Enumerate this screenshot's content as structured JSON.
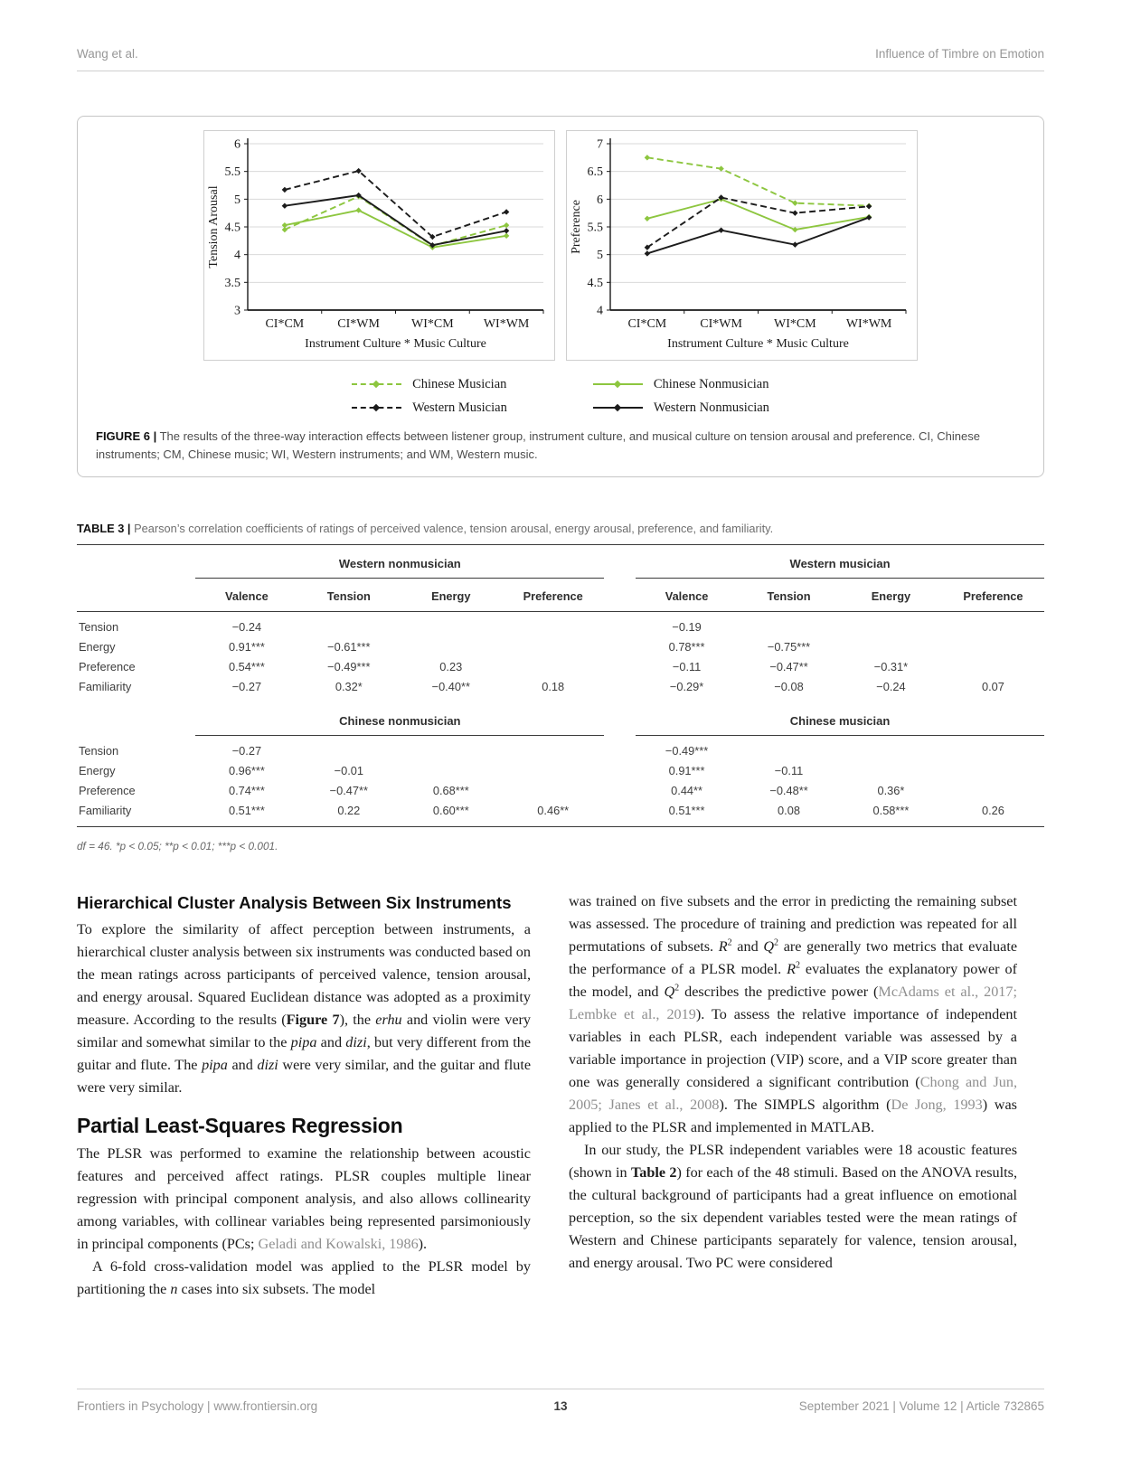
{
  "header": {
    "left": "Wang et al.",
    "right": "Influence of Timbre on Emotion"
  },
  "footer": {
    "left": "Frontiers in Psychology | www.frontiersin.org",
    "page_number": "13",
    "right": "September 2021 | Volume 12 | Article 732865"
  },
  "colors": {
    "green_series": "#8dc63f",
    "black_series": "#1c1c1c",
    "gridline": "#d9d9d9"
  },
  "figure6": {
    "label": "FIGURE 6 |",
    "caption": "The results of the three-way interaction effects between listener group, instrument culture, and musical culture on tension arousal and preference. CI, Chinese instruments; CM, Chinese music; WI, Western instruments; and WM, Western music.",
    "legend": [
      {
        "label": "Chinese Musician",
        "color": "#8dc63f",
        "dashed": true
      },
      {
        "label": "Chinese Nonmusician",
        "color": "#8dc63f",
        "dashed": false
      },
      {
        "label": "Western Musician",
        "color": "#1c1c1c",
        "dashed": true
      },
      {
        "label": "Western Nonmusician",
        "color": "#1c1c1c",
        "dashed": false
      }
    ]
  },
  "chart_data": [
    {
      "type": "line",
      "title": "",
      "ylabel": "Tension Arousal",
      "xlabel": "Instrument Culture * Music Culture",
      "categories": [
        "CI*CM",
        "CI*WM",
        "WI*CM",
        "WI*WM"
      ],
      "ylim": [
        3,
        6
      ],
      "ytick_step": 0.5,
      "grid": true,
      "legend_position": "below-shared",
      "series": [
        {
          "name": "Chinese Nonmusician",
          "color": "#8dc63f",
          "dashed": false,
          "values": [
            4.53,
            4.8,
            4.13,
            4.34
          ]
        },
        {
          "name": "Chinese Musician",
          "color": "#8dc63f",
          "dashed": true,
          "values": [
            4.45,
            5.05,
            4.16,
            4.53
          ]
        },
        {
          "name": "Western Nonmusician",
          "color": "#1c1c1c",
          "dashed": false,
          "values": [
            4.88,
            5.07,
            4.17,
            4.43
          ]
        },
        {
          "name": "Western Musician",
          "color": "#1c1c1c",
          "dashed": true,
          "values": [
            5.17,
            5.51,
            4.32,
            4.77
          ]
        }
      ]
    },
    {
      "type": "line",
      "title": "",
      "ylabel": "Preference",
      "xlabel": "Instrument Culture * Music Culture",
      "categories": [
        "CI*CM",
        "CI*WM",
        "WI*CM",
        "WI*WM"
      ],
      "ylim": [
        4,
        7
      ],
      "ytick_step": 0.5,
      "grid": true,
      "legend_position": "below-shared",
      "series": [
        {
          "name": "Chinese Nonmusician",
          "color": "#8dc63f",
          "dashed": false,
          "values": [
            5.65,
            6.0,
            5.45,
            5.68
          ]
        },
        {
          "name": "Chinese Musician",
          "color": "#8dc63f",
          "dashed": true,
          "values": [
            6.75,
            6.55,
            5.93,
            5.88
          ]
        },
        {
          "name": "Western Nonmusician",
          "color": "#1c1c1c",
          "dashed": false,
          "values": [
            5.02,
            5.44,
            5.18,
            5.67
          ]
        },
        {
          "name": "Western Musician",
          "color": "#1c1c1c",
          "dashed": true,
          "values": [
            5.13,
            6.03,
            5.75,
            5.87
          ]
        }
      ]
    }
  ],
  "table3": {
    "label": "TABLE 3 |",
    "caption": "Pearson’s correlation coefficients of ratings of perceived valence, tension arousal, energy arousal, preference, and familiarity.",
    "column_headers": [
      "Valence",
      "Tension",
      "Energy",
      "Preference"
    ],
    "sections": [
      {
        "left_group": "Western nonmusician",
        "right_group": "Western musician",
        "rows": [
          {
            "label": "Tension",
            "left": [
              "−0.24",
              "",
              "",
              ""
            ],
            "right": [
              "−0.19",
              "",
              "",
              ""
            ]
          },
          {
            "label": "Energy",
            "left": [
              "0.91***",
              "−0.61***",
              "",
              ""
            ],
            "right": [
              "0.78***",
              "−0.75***",
              "",
              ""
            ]
          },
          {
            "label": "Preference",
            "left": [
              "0.54***",
              "−0.49***",
              "0.23",
              ""
            ],
            "right": [
              "−0.11",
              "−0.47**",
              "−0.31*",
              ""
            ]
          },
          {
            "label": "Familiarity",
            "left": [
              "−0.27",
              "0.32*",
              "−0.40**",
              "0.18"
            ],
            "right": [
              "−0.29*",
              "−0.08",
              "−0.24",
              "0.07"
            ]
          }
        ]
      },
      {
        "left_group": "Chinese nonmusician",
        "right_group": "Chinese musician",
        "rows": [
          {
            "label": "Tension",
            "left": [
              "−0.27",
              "",
              "",
              ""
            ],
            "right": [
              "−0.49***",
              "",
              "",
              ""
            ]
          },
          {
            "label": "Energy",
            "left": [
              "0.96***",
              "−0.01",
              "",
              ""
            ],
            "right": [
              "0.91***",
              "−0.11",
              "",
              ""
            ]
          },
          {
            "label": "Preference",
            "left": [
              "0.74***",
              "−0.47**",
              "0.68***",
              ""
            ],
            "right": [
              "0.44**",
              "−0.48**",
              "0.36*",
              ""
            ]
          },
          {
            "label": "Familiarity",
            "left": [
              "0.51***",
              "0.22",
              "0.60***",
              "0.46**"
            ],
            "right": [
              "0.51***",
              "0.08",
              "0.58***",
              "0.26"
            ]
          }
        ]
      }
    ],
    "footnote": "df = 46. *p < 0.05; **p < 0.01; ***p < 0.001."
  },
  "body": {
    "left_column": [
      {
        "type": "h3",
        "text": "Hierarchical Cluster Analysis Between Six Instruments"
      },
      {
        "type": "p",
        "indent": false,
        "segments": [
          {
            "t": "To explore the similarity of affect perception between instruments, a hierarchical cluster analysis between six instruments was conducted based on the mean ratings across participants of perceived valence, tension arousal, and energy arousal. Squared Euclidean distance was adopted as a proximity measure. According to the results ("
          },
          {
            "t": "Figure 7",
            "s": "b"
          },
          {
            "t": "), the "
          },
          {
            "t": "erhu",
            "s": "i"
          },
          {
            "t": " and violin were very similar and somewhat similar to the "
          },
          {
            "t": "pipa",
            "s": "i"
          },
          {
            "t": " and "
          },
          {
            "t": "dizi",
            "s": "i"
          },
          {
            "t": ", but very different from the guitar and flute. The "
          },
          {
            "t": "pipa",
            "s": "i"
          },
          {
            "t": " and "
          },
          {
            "t": "dizi",
            "s": "i"
          },
          {
            "t": " were very similar, and the guitar and flute were very similar."
          }
        ]
      },
      {
        "type": "h2",
        "text": "Partial Least-Squares Regression"
      },
      {
        "type": "p",
        "indent": false,
        "segments": [
          {
            "t": "The PLSR was performed to examine the relationship between acoustic features and perceived affect ratings. PLSR couples multiple linear regression with principal component analysis, and also allows collinearity among variables, with collinear variables being represented parsimoniously in principal components (PCs; "
          },
          {
            "t": "Geladi and Kowalski, 1986",
            "s": "cite"
          },
          {
            "t": ")."
          }
        ]
      },
      {
        "type": "p",
        "indent": true,
        "segments": [
          {
            "t": "A 6-fold cross-validation model was applied to the PLSR model by partitioning the "
          },
          {
            "t": "n",
            "s": "i"
          },
          {
            "t": " cases into six subsets. The model"
          }
        ]
      }
    ],
    "right_column": [
      {
        "type": "p",
        "indent": false,
        "segments": [
          {
            "t": "was trained on five subsets and the error in predicting the remaining subset was assessed. The procedure of training and prediction was repeated for all permutations of subsets. "
          },
          {
            "t": "R",
            "s": "i"
          },
          {
            "t": "2",
            "s": "sup"
          },
          {
            "t": " and "
          },
          {
            "t": "Q",
            "s": "i"
          },
          {
            "t": "2",
            "s": "sup"
          },
          {
            "t": " are generally two metrics that evaluate the performance of a PLSR model. "
          },
          {
            "t": "R",
            "s": "i"
          },
          {
            "t": "2",
            "s": "sup"
          },
          {
            "t": " evaluates the explanatory power of the model, and "
          },
          {
            "t": "Q",
            "s": "i"
          },
          {
            "t": "2",
            "s": "sup"
          },
          {
            "t": " describes the predictive power ("
          },
          {
            "t": "McAdams et al., 2017; Lembke et al., 2019",
            "s": "cite"
          },
          {
            "t": "). To assess the relative importance of independent variables in each PLSR, each independent variable was assessed by a variable importance in projection (VIP) score, and a VIP score greater than one was generally considered a significant contribution ("
          },
          {
            "t": "Chong and Jun, 2005; Janes et al., 2008",
            "s": "cite"
          },
          {
            "t": "). The SIMPLS algorithm ("
          },
          {
            "t": "De Jong, 1993",
            "s": "cite"
          },
          {
            "t": ") was applied to the PLSR and implemented in MATLAB."
          }
        ]
      },
      {
        "type": "p",
        "indent": true,
        "segments": [
          {
            "t": "In our study, the PLSR independent variables were 18 acoustic features (shown in "
          },
          {
            "t": "Table 2",
            "s": "b"
          },
          {
            "t": ") for each of the 48 stimuli. Based on the ANOVA results, the cultural background of participants had a great influence on emotional perception, so the six dependent variables tested were the mean ratings of Western and Chinese participants separately for valence, tension arousal, and energy arousal. Two PC were considered"
          }
        ]
      }
    ]
  }
}
